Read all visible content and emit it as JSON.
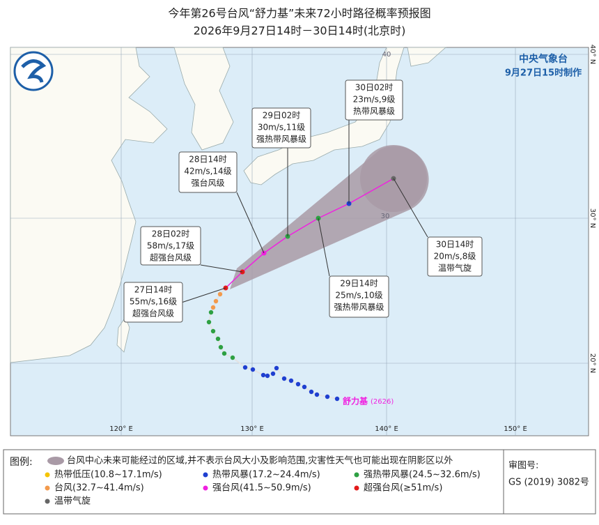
{
  "header": {
    "title": "今年第26号台风“舒力基”未来72小时路径概率预报图",
    "subtitle": "2026年9月27日14时－30日14时(北京时)"
  },
  "agency": {
    "name": "中央气象台",
    "issued": "9月27日15时制作"
  },
  "forecasts": [
    {
      "time": "27日14时",
      "wind": "55m/s,16级",
      "level": "超强台风级"
    },
    {
      "time": "28日02时",
      "wind": "58m/s,17级",
      "level": "超强台风级"
    },
    {
      "time": "28日14时",
      "wind": "42m/s,14级",
      "level": "强台风级"
    },
    {
      "time": "29日02时",
      "wind": "30m/s,11级",
      "level": "强热带风暴级"
    },
    {
      "time": "29日14时",
      "wind": "25m/s,10级",
      "level": "强热带风暴级"
    },
    {
      "time": "30日02时",
      "wind": "23m/s,9级",
      "level": "热带风暴级"
    },
    {
      "time": "30日14时",
      "wind": "20m/s,8级",
      "level": "温带气旋"
    }
  ],
  "storm_label": {
    "name": "舒力基",
    "code": "(2626)"
  },
  "axes": {
    "lon": [
      "120° E",
      "130° E",
      "140° E",
      "150° E"
    ],
    "lat": [
      "20° N",
      "30° N",
      "40° N"
    ],
    "inner": [
      "40",
      "30"
    ]
  },
  "legend": {
    "title": "图例:",
    "cone": "台风中心未来可能经过的区域,并不表示台风大小及影响范围,灾害性天气也可能出现在阴影区以外",
    "items": [
      {
        "text": "热带低压(10.8~17.1m/s)",
        "color": "#f5c400"
      },
      {
        "text": "热带风暴(17.2~24.4m/s)",
        "color": "#1f3fd0"
      },
      {
        "text": "强热带风暴(24.5~32.6m/s)",
        "color": "#2ea043"
      },
      {
        "text": "台风(32.7~41.4m/s)",
        "color": "#f39a4c"
      },
      {
        "text": "强台风(41.5~50.9m/s)",
        "color": "#f020e0"
      },
      {
        "text": "超强台风(≥51m/s)",
        "color": "#e31a1a"
      },
      {
        "text": "温带气旋",
        "color": "#666666"
      }
    ]
  },
  "approval": {
    "label": "审图号:",
    "number": "GS (2019) 3082号"
  }
}
